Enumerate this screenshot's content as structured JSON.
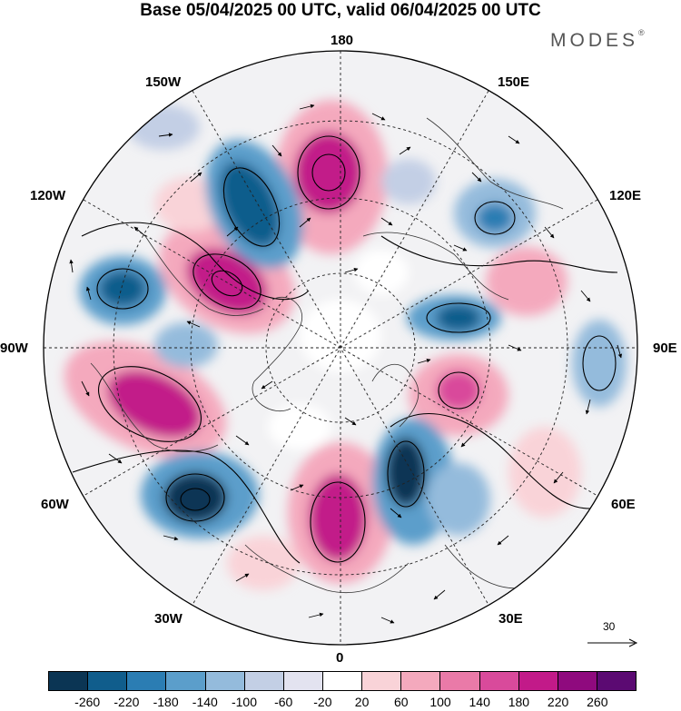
{
  "title": "Base 05/04/2025 00 UTC, valid 06/04/2025 00 UTC",
  "brand": "MODES",
  "brand_mark": "®",
  "longitude_labels": {
    "top": "180",
    "bottom": "0",
    "left": "90W",
    "right": "90E",
    "upper_left_1": "150W",
    "upper_left_2": "120W",
    "lower_left_1": "60W",
    "lower_left_2": "30W",
    "upper_right_1": "150E",
    "upper_right_2": "120E",
    "lower_right_1": "60E",
    "lower_right_2": "30E"
  },
  "reference_vector": "30",
  "colorbar": {
    "colors": [
      "#0b3554",
      "#105d8c",
      "#2b7db3",
      "#5b9ecb",
      "#94bbdc",
      "#c3cfe5",
      "#e3e3f0",
      "#ffffff",
      "#f9d3d8",
      "#f4a9bd",
      "#ea7aa8",
      "#d94a9b",
      "#c21a89",
      "#8f0a7e",
      "#5b0a72"
    ],
    "tick_labels": [
      "-260",
      "-220",
      "-180",
      "-140",
      "-100",
      "-60",
      "-20",
      "20",
      "60",
      "100",
      "140",
      "180",
      "220",
      "260"
    ]
  }
}
